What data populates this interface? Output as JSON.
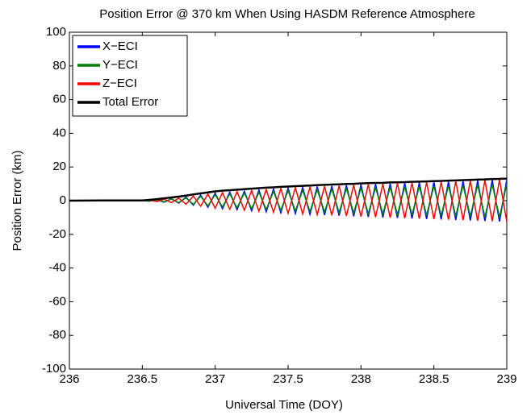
{
  "chart_data": {
    "type": "line",
    "title": "Position Error @ 370 km When Using HASDM Reference Atmosphere",
    "xlabel": "Universal Time (DOY)",
    "ylabel": "Position Error (km)",
    "x": [
      236,
      236.25,
      236.5,
      236.55,
      236.6,
      236.65,
      236.7,
      236.75,
      236.8,
      236.85,
      236.9,
      236.95,
      237,
      237.05,
      237.1,
      237.15,
      237.2,
      237.25,
      237.3,
      237.35,
      237.4,
      237.45,
      237.5,
      237.55,
      237.6,
      237.65,
      237.7,
      237.75,
      237.8,
      237.85,
      237.9,
      237.95,
      238,
      238.05,
      238.1,
      238.15,
      238.2,
      238.25,
      238.3,
      238.35,
      238.4,
      238.45,
      238.5,
      238.55,
      238.6,
      238.65,
      238.7,
      238.75,
      238.8,
      238.85,
      238.9,
      238.95,
      239
    ],
    "series": [
      {
        "name": "X−ECI",
        "color": "#0000ff",
        "values": [
          0,
          0,
          0,
          -0.3,
          0.6,
          -0.9,
          1.2,
          -1.5,
          2.1,
          -2.7,
          3.3,
          -3.9,
          4.5,
          -4.8,
          5.1,
          -5.4,
          5.7,
          -6,
          6.3,
          -6.6,
          6.9,
          -7.2,
          7.5,
          -7.7,
          7.9,
          -8.1,
          8.3,
          -8.5,
          8.7,
          -8.9,
          9.1,
          -9.3,
          9.5,
          -9.7,
          9.8,
          -10,
          10.1,
          -10.3,
          10.4,
          -10.6,
          10.7,
          -10.9,
          11,
          -11.2,
          11.3,
          -11.5,
          11.6,
          -11.8,
          11.9,
          -12.1,
          12.2,
          -12.4,
          12.5
        ]
      },
      {
        "name": "Y−ECI",
        "color": "#008000",
        "values": [
          0,
          0,
          0,
          -0.2,
          0.5,
          -0.7,
          1,
          -1.2,
          1.7,
          -2.2,
          2.6,
          -3.1,
          3.6,
          -3.8,
          4.1,
          -4.3,
          4.6,
          -4.8,
          5,
          -5.3,
          5.5,
          -5.8,
          6,
          -6.2,
          6.3,
          -6.5,
          6.6,
          -6.8,
          7,
          -7.1,
          7.3,
          -7.4,
          7.6,
          -7.8,
          7.8,
          -8,
          8.1,
          -8.2,
          8.3,
          -8.5,
          8.6,
          -8.7,
          8.8,
          -9,
          9,
          -9.2,
          9.3,
          -9.4,
          9.5,
          -9.7,
          9.8,
          -9.9,
          10
        ]
      },
      {
        "name": "Z−ECI",
        "color": "#ff0000",
        "values": [
          0,
          0,
          0,
          0.3,
          -0.6,
          0.9,
          -1.2,
          1.5,
          -2.1,
          2.7,
          -3.3,
          3.9,
          -4.5,
          4.8,
          -5.1,
          5.4,
          -5.7,
          6,
          -6.3,
          6.6,
          -6.9,
          7.2,
          -7.5,
          7.7,
          -7.9,
          8.1,
          -8.3,
          8.5,
          -8.7,
          8.9,
          -9.1,
          9.3,
          -9.5,
          9.7,
          -9.8,
          10,
          -10.1,
          10.3,
          -10.4,
          10.6,
          -10.7,
          10.9,
          -11,
          11.2,
          -11.3,
          11.5,
          -11.6,
          11.8,
          -11.9,
          12.1,
          -12.2,
          12.4,
          -12.5
        ]
      },
      {
        "name": "Total Error",
        "color": "#000000",
        "values": [
          0,
          0.1,
          0.1,
          0.5,
          0.9,
          1.4,
          1.9,
          2.4,
          3,
          3.7,
          4.3,
          4.9,
          5.5,
          5.9,
          6.2,
          6.5,
          6.8,
          7.1,
          7.4,
          7.7,
          7.9,
          8.2,
          8.4,
          8.6,
          8.8,
          9,
          9.2,
          9.4,
          9.6,
          9.7,
          9.9,
          10,
          10.2,
          10.4,
          10.5,
          10.6,
          10.8,
          10.9,
          11,
          11.2,
          11.3,
          11.4,
          11.6,
          11.7,
          11.9,
          12,
          12.2,
          12.3,
          12.5,
          12.6,
          12.8,
          12.9,
          13.1
        ]
      }
    ],
    "xlim": [
      236,
      239
    ],
    "xticks": [
      236,
      236.5,
      237,
      237.5,
      238,
      238.5,
      239
    ],
    "ylim": [
      -100,
      100
    ],
    "yticks": [
      -100,
      -80,
      -60,
      -40,
      -20,
      0,
      20,
      40,
      60,
      80,
      100
    ],
    "grid": false,
    "legend": "upper left"
  }
}
